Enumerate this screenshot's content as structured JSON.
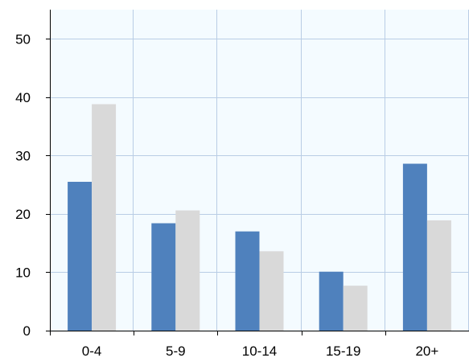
{
  "chart_data": {
    "type": "bar",
    "categories": [
      "0-4",
      "5-9",
      "10-14",
      "15-19",
      "20+"
    ],
    "series": [
      {
        "values": [
          25.5,
          18.4,
          17.0,
          10.1,
          28.6
        ],
        "color": "#4f81bd"
      },
      {
        "values": [
          38.8,
          20.6,
          13.6,
          7.7,
          18.9
        ],
        "color": "#d9d9d9"
      }
    ],
    "ylim": [
      0,
      55
    ],
    "yticks": [
      0,
      10,
      20,
      30,
      40,
      50
    ],
    "grid": true,
    "plot_background": "#f4fbff",
    "grid_color": "#b9cde5",
    "axis_color": "#000000"
  }
}
